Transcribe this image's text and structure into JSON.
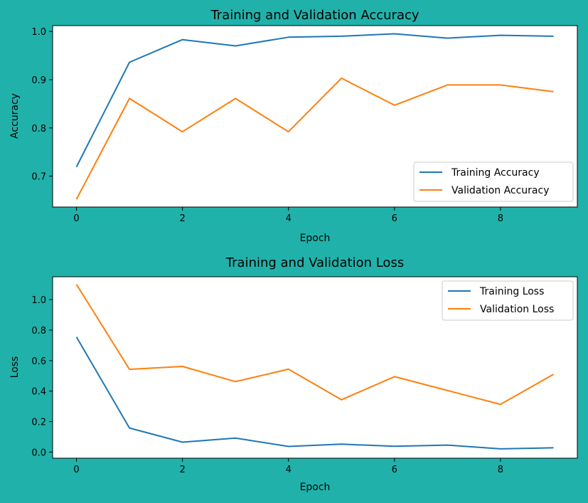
{
  "chart_data": [
    {
      "type": "line",
      "title": "Training and Validation Accuracy",
      "xlabel": "Epoch",
      "ylabel": "Accuracy",
      "xlim": [
        -0.45,
        9.45
      ],
      "ylim": [
        0.636,
        1.012
      ],
      "xticks": [
        0,
        2,
        4,
        6,
        8
      ],
      "xtick_labels": [
        "0",
        "2",
        "4",
        "6",
        "8"
      ],
      "yticks": [
        0.7,
        0.8,
        0.9,
        1.0
      ],
      "ytick_labels": [
        "0.7",
        "0.8",
        "0.9",
        "1.0"
      ],
      "x": [
        0,
        1,
        2,
        3,
        4,
        5,
        6,
        7,
        8,
        9
      ],
      "series": [
        {
          "name": "Training Accuracy",
          "color": "#1f77b4",
          "values": [
            0.719,
            0.936,
            0.983,
            0.97,
            0.988,
            0.99,
            0.995,
            0.986,
            0.992,
            0.99
          ]
        },
        {
          "name": "Validation Accuracy",
          "color": "#ff7f0e",
          "values": [
            0.652,
            0.861,
            0.792,
            0.861,
            0.792,
            0.903,
            0.847,
            0.889,
            0.889,
            0.875
          ]
        }
      ],
      "legend": "lower right",
      "grid": false
    },
    {
      "type": "line",
      "title": "Training and Validation Loss",
      "xlabel": "Epoch",
      "ylabel": "Loss",
      "xlim": [
        -0.45,
        9.45
      ],
      "ylim": [
        -0.04,
        1.15
      ],
      "xticks": [
        0,
        2,
        4,
        6,
        8
      ],
      "xtick_labels": [
        "0",
        "2",
        "4",
        "6",
        "8"
      ],
      "yticks": [
        0.0,
        0.2,
        0.4,
        0.6,
        0.8,
        1.0
      ],
      "ytick_labels": [
        "0.0",
        "0.2",
        "0.4",
        "0.6",
        "0.8",
        "1.0"
      ],
      "x": [
        0,
        1,
        2,
        3,
        4,
        5,
        6,
        7,
        8,
        9
      ],
      "series": [
        {
          "name": "Training Loss",
          "color": "#1f77b4",
          "values": [
            0.755,
            0.158,
            0.065,
            0.092,
            0.037,
            0.052,
            0.038,
            0.046,
            0.021,
            0.028
          ]
        },
        {
          "name": "Validation Loss",
          "color": "#ff7f0e",
          "values": [
            1.1,
            0.543,
            0.562,
            0.462,
            0.544,
            0.343,
            0.495,
            0.404,
            0.313,
            0.51
          ]
        }
      ],
      "legend": "upper right",
      "grid": false
    }
  ]
}
